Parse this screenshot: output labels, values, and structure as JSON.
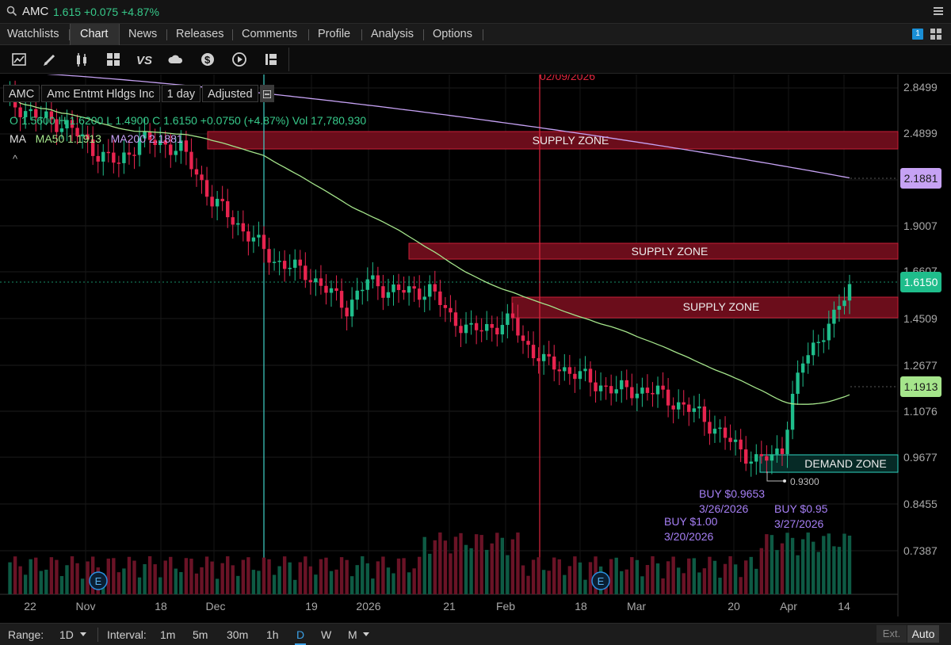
{
  "header": {
    "symbol": "AMC",
    "quote": "1.615 +0.075 +4.87%"
  },
  "tabs": [
    {
      "label": "Watchlists"
    },
    {
      "label": "Chart"
    },
    {
      "label": "News"
    },
    {
      "label": "Releases"
    },
    {
      "label": "Comments"
    },
    {
      "label": "Profile"
    },
    {
      "label": "Analysis"
    },
    {
      "label": "Options"
    }
  ],
  "link_badge": "1",
  "toolbar_icons": [
    "chart-style-icon",
    "drawing-pen-icon",
    "candle-type-icon",
    "layout-grid-icon",
    "compare-icon",
    "cloud-icon",
    "dollar-icon",
    "playback-icon",
    "studies-icon"
  ],
  "legend": {
    "symbol": "AMC",
    "name": "Amc Entmt Hldgs Inc",
    "interval": "1 day",
    "adjust": "Adjusted",
    "ohlc": "O  1.5600   H  1.6200   L  1.4900   C  1.6150  +0.0750 (+4.87%)    Vol  17,780,930",
    "ma_label": "MA",
    "ma50": "MA50 1.1913",
    "ma200": "MA200 2.1881",
    "caret": "^"
  },
  "colors": {
    "up": "#1fbd8b",
    "down": "#e8244f",
    "ma50": "#a5e58b",
    "ma200": "#c6a2f4",
    "supply": "#6b0d1b",
    "demand": "#062a26",
    "annotation": "#a67ff5",
    "vline_red": "#e0263e",
    "vline_cyan": "#3fd1c8"
  },
  "price_axis": [
    "2.8499",
    "2.4899",
    "1.9007",
    "1.6607",
    "1.4509",
    "1.2677",
    "1.1076",
    "0.9677",
    "0.8455",
    "0.7387"
  ],
  "price_tags": {
    "last": "1.6150",
    "ma200": "2.1881",
    "ma50": "1.1913"
  },
  "date_axis": [
    "22",
    "Nov",
    "18",
    "Dec",
    "19",
    "2026",
    "21",
    "Feb",
    "18",
    "Mar",
    "20",
    "Apr",
    "14"
  ],
  "zones": {
    "supply1": "SUPPLY ZONE",
    "supply2": "SUPPLY ZONE",
    "supply3": "SUPPLY ZONE",
    "demand": "DEMAND ZONE"
  },
  "annotations": {
    "low_marker": "0.9300",
    "buy1": "BUY $1.00",
    "buy1_date": "3/20/2026",
    "buy2": "BUY $0.9653",
    "buy2_date": "3/26/2026",
    "buy3": "BUY $0.95",
    "buy3_date": "3/27/2026",
    "vline_date": "02/09/2026",
    "earnings": "E"
  },
  "bottom": {
    "range_label": "Range:",
    "range_value": "1D",
    "interval_label": "Interval:",
    "intervals": [
      "1m",
      "5m",
      "30m",
      "1h",
      "D",
      "W",
      "M"
    ],
    "selected_interval": "D",
    "ext": "Ext.",
    "auto": "Auto"
  }
}
